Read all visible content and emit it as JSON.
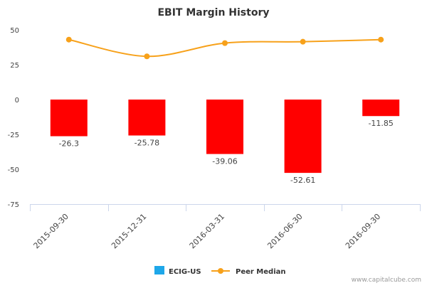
{
  "chart_data": {
    "type": "bar",
    "title": "EBIT Margin History",
    "categories": [
      "2015-09-30",
      "2015-12-31",
      "2016-03-31",
      "2016-06-30",
      "2016-09-30"
    ],
    "series": [
      {
        "name": "ECIG-US",
        "type": "bar",
        "values": [
          -26.3,
          -25.78,
          -39.06,
          -52.61,
          -11.85
        ],
        "labels": [
          "-26.3",
          "-25.78",
          "-39.06",
          "-52.61",
          "-11.85"
        ]
      },
      {
        "name": "Peer Median",
        "type": "line",
        "values": [
          43,
          31,
          40.5,
          41.5,
          43
        ]
      }
    ],
    "ylim": [
      -75,
      50
    ],
    "yticks": [
      50,
      25,
      0,
      -25,
      -50,
      -75
    ],
    "ytick_labels": [
      "50",
      "25",
      "0",
      "-25",
      "-50",
      "-75"
    ],
    "legend_position": "bottom-center",
    "grid": false
  },
  "colors": {
    "bar_fill": "#ff0000",
    "line": "#f7a11a",
    "legend_ecig_swatch": "#1ea7e9",
    "axis_text": "#444444",
    "title": "#333333",
    "footer": "#999999"
  },
  "footer": "www.capitalcube.com"
}
